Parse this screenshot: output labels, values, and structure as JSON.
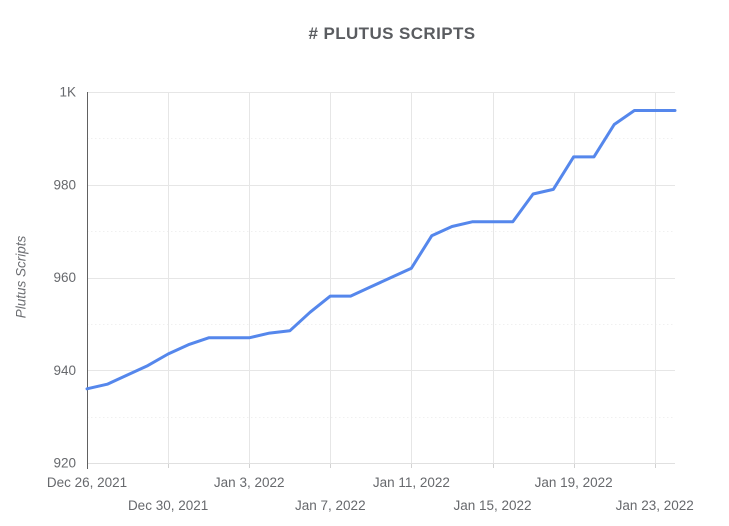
{
  "chart_data": {
    "type": "line",
    "title": "# PLUTUS SCRIPTS",
    "xlabel": "",
    "ylabel": "Plutus Scripts",
    "ylim": [
      920,
      1000
    ],
    "y_major_step": 20,
    "y_minor_step": 10,
    "grid": true,
    "legend": "none",
    "line_color": "#5587EC",
    "y_ticks": [
      {
        "label": "1K",
        "value": 1000
      },
      {
        "label": "980",
        "value": 980
      },
      {
        "label": "960",
        "value": 960
      },
      {
        "label": "940",
        "value": 940
      },
      {
        "label": "920",
        "value": 920
      }
    ],
    "x_ticks": [
      {
        "label": "Dec 26, 2021",
        "day": 0,
        "row": 1
      },
      {
        "label": "Dec 30, 2021",
        "day": 4,
        "row": 2
      },
      {
        "label": "Jan 3, 2022",
        "day": 8,
        "row": 1
      },
      {
        "label": "Jan 7, 2022",
        "day": 12,
        "row": 2
      },
      {
        "label": "Jan 11, 2022",
        "day": 16,
        "row": 1
      },
      {
        "label": "Jan 15, 2022",
        "day": 20,
        "row": 2
      },
      {
        "label": "Jan 19, 2022",
        "day": 24,
        "row": 1
      },
      {
        "label": "Jan 23, 2022",
        "day": 28,
        "row": 2
      }
    ],
    "x_span_days": 29,
    "x": [
      "Dec 26, 2021",
      "Dec 27, 2021",
      "Dec 28, 2021",
      "Dec 29, 2021",
      "Dec 30, 2021",
      "Dec 31, 2021",
      "Jan 1, 2022",
      "Jan 2, 2022",
      "Jan 3, 2022",
      "Jan 4, 2022",
      "Jan 5, 2022",
      "Jan 6, 2022",
      "Jan 7, 2022",
      "Jan 8, 2022",
      "Jan 9, 2022",
      "Jan 10, 2022",
      "Jan 11, 2022",
      "Jan 12, 2022",
      "Jan 13, 2022",
      "Jan 14, 2022",
      "Jan 15, 2022",
      "Jan 16, 2022",
      "Jan 17, 2022",
      "Jan 18, 2022",
      "Jan 19, 2022",
      "Jan 20, 2022",
      "Jan 21, 2022",
      "Jan 22, 2022",
      "Jan 23, 2022",
      "Jan 24, 2022"
    ],
    "series": [
      {
        "name": "Plutus Scripts",
        "values": [
          936,
          937,
          939,
          941,
          943.5,
          945.5,
          947,
          947,
          947,
          948,
          948.5,
          952.5,
          956,
          956,
          958,
          960,
          962,
          969,
          971,
          972,
          972,
          972,
          978,
          979,
          986,
          986,
          993,
          996,
          996,
          996
        ]
      }
    ]
  }
}
